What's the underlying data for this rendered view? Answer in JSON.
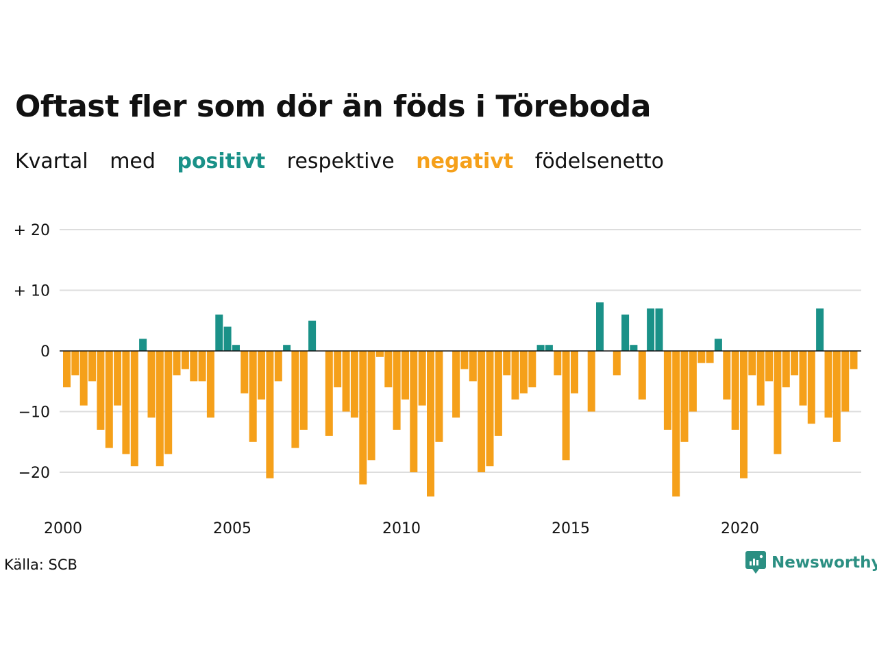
{
  "header": {
    "title": "Oftast fler som dör än föds i Töreboda",
    "subtitle_parts": [
      "Kvartal",
      "med",
      "positivt",
      "respektive",
      "negativt",
      "födelsenetto"
    ]
  },
  "footer": {
    "source": "Källa: SCB",
    "brand": "Newsworthy"
  },
  "colors": {
    "positive": "#1a9188",
    "negative": "#f5a01a",
    "grid": "#dddddd",
    "zero_line": "#111111"
  },
  "chart_data": {
    "type": "bar",
    "title": "Oftast fler som dör än föds i Töreboda",
    "subtitle": "Kvartal med positivt respektive negativt födelsenetto",
    "x_start": "2000 Q1",
    "x_step": "quarter",
    "ylim": [
      -25,
      20
    ],
    "y_ticks": [
      20,
      10,
      0,
      -10,
      -20
    ],
    "y_tick_labels": [
      "+ 20",
      "+ 10",
      "0",
      "−10",
      "−20"
    ],
    "x_ticks": [
      "2000",
      "2005",
      "2010",
      "2015",
      "2020"
    ],
    "grid": true,
    "values": [
      -6,
      -4,
      -9,
      -5,
      -13,
      -16,
      -9,
      -17,
      -19,
      2,
      -11,
      -19,
      -17,
      -4,
      -3,
      -5,
      -5,
      -11,
      6,
      4,
      1,
      -7,
      -15,
      -8,
      -21,
      -5,
      1,
      -16,
      -13,
      5,
      0,
      -14,
      -6,
      -10,
      -11,
      -22,
      -18,
      -1,
      -6,
      -13,
      -8,
      -20,
      -9,
      -24,
      -15,
      0,
      -11,
      -3,
      -5,
      -20,
      -19,
      -14,
      -4,
      -8,
      -7,
      -6,
      1,
      1,
      -4,
      -18,
      -7,
      0,
      -10,
      8,
      0,
      -4,
      6,
      1,
      -8,
      7,
      7,
      -13,
      -24,
      -15,
      -10,
      -2,
      -2,
      2,
      -8,
      -13,
      -21,
      -4,
      -9,
      -5,
      -17,
      -6,
      -4,
      -9,
      -12,
      7,
      -11,
      -15,
      -10,
      -3
    ]
  }
}
